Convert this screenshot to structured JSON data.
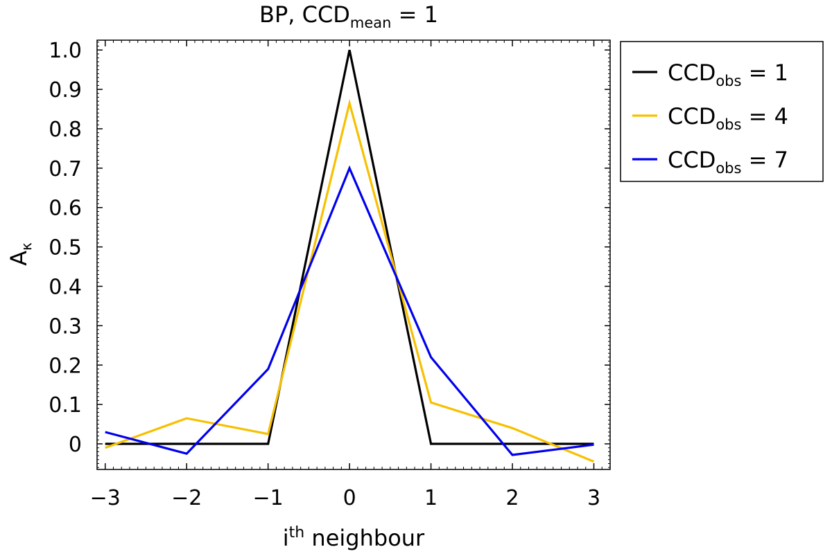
{
  "chart_data": {
    "type": "line",
    "title": {
      "main": "BP,  CCD",
      "sub": "mean",
      "suffix": " = 1"
    },
    "xlabel": {
      "base": "i",
      "sup": "th",
      "rest": " neighbour"
    },
    "ylabel": {
      "base": "A",
      "sub": "κ"
    },
    "xlim": [
      -3.1,
      3.2
    ],
    "ylim": [
      -0.065,
      1.025
    ],
    "x": [
      -3,
      -2,
      -1,
      0,
      1,
      2,
      3
    ],
    "xticks": [
      -3,
      -2,
      -1,
      0,
      1,
      2,
      3
    ],
    "xtick_labels": [
      "−3",
      "−2",
      "−1",
      "0",
      "1",
      "2",
      "3"
    ],
    "yticks": [
      0,
      0.1,
      0.2,
      0.3,
      0.4,
      0.5,
      0.6,
      0.7,
      0.8,
      0.9,
      1.0
    ],
    "ytick_labels": [
      "0",
      "0.1",
      "0.2",
      "0.3",
      "0.4",
      "0.5",
      "0.6",
      "0.7",
      "0.8",
      "0.9",
      "1.0"
    ],
    "grid": false,
    "legend_position": "outside-top-right",
    "series": [
      {
        "name": "CCD_obs = 1",
        "label_base": "CCD",
        "label_sub": "obs",
        "label_suffix": " = 1",
        "color": "#000000",
        "values": [
          0,
          0,
          0,
          1.0,
          0,
          0,
          0
        ]
      },
      {
        "name": "CCD_obs = 4",
        "label_base": "CCD",
        "label_sub": "obs",
        "label_suffix": " = 4",
        "color": "#f7c000",
        "values": [
          -0.01,
          0.065,
          0.025,
          0.865,
          0.105,
          0.04,
          -0.045
        ]
      },
      {
        "name": "CCD_obs = 7",
        "label_base": "CCD",
        "label_sub": "obs",
        "label_suffix": " = 7",
        "color": "#0000ee",
        "values": [
          0.03,
          -0.025,
          0.19,
          0.7,
          0.22,
          -0.028,
          -0.002
        ]
      }
    ]
  }
}
